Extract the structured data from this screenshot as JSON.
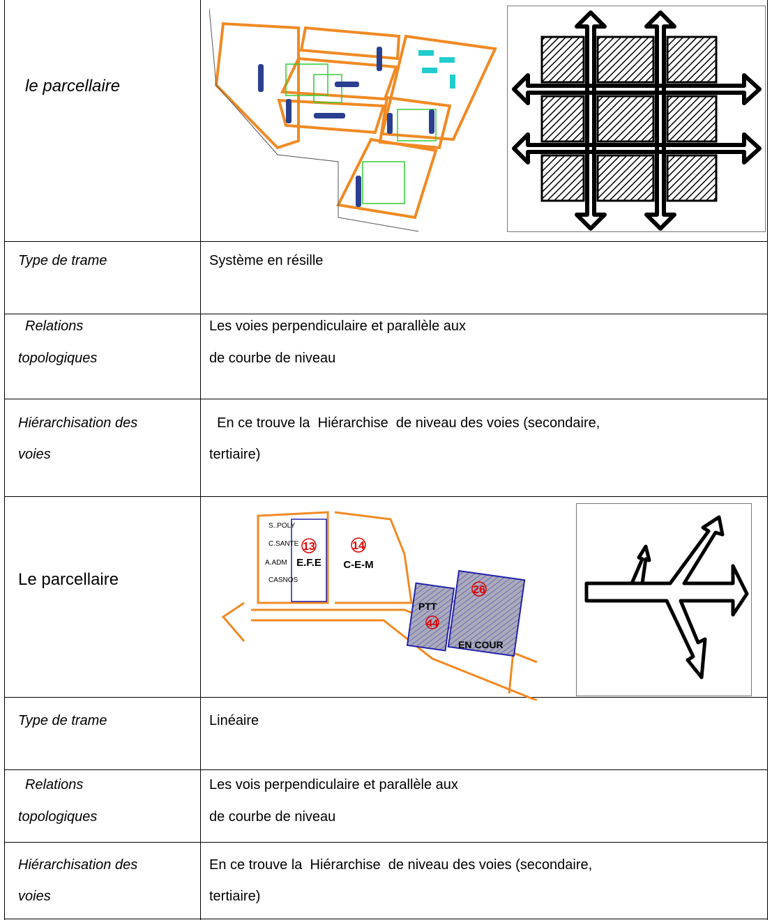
{
  "table": {
    "rows": [
      [
        [
          "le parcellaire"
        ]
      ],
      [
        [
          "Type de trame"
        ],
        [
          "Système en résille"
        ]
      ],
      [
        [
          "Relations",
          "topologiques"
        ],
        [
          "Les voies perpendiculaire et parallèle aux",
          "de courbe de niveau"
        ]
      ],
      [
        [
          "Hiérarchisation des",
          "voies"
        ],
        [
          "  En ce trouve la  Hiérarchise  de niveau des voies (secondaire,",
          "tertiaire)"
        ]
      ],
      [
        [
          "Le parcellaire"
        ]
      ],
      [
        [
          "Type de trame"
        ],
        [
          "Linéaire"
        ]
      ],
      [
        [
          "Relations",
          "topologiques"
        ],
        [
          "Les vois perpendiculaire et parallèle aux",
          "de courbe de niveau"
        ]
      ],
      [
        [
          "Hiérarchisation des",
          "voies"
        ],
        [
          "En ce trouve la  Hiérarchise  de niveau des voies (secondaire,",
          "tertiaire)"
        ]
      ]
    ]
  },
  "plan_labels": [
    "S..POLY",
    "C.SANTE",
    "A.ADM",
    "CASNOS",
    "13",
    "E.F.E",
    "14",
    "C-E-M",
    "PTT",
    "44",
    "26",
    "EN COUR"
  ]
}
